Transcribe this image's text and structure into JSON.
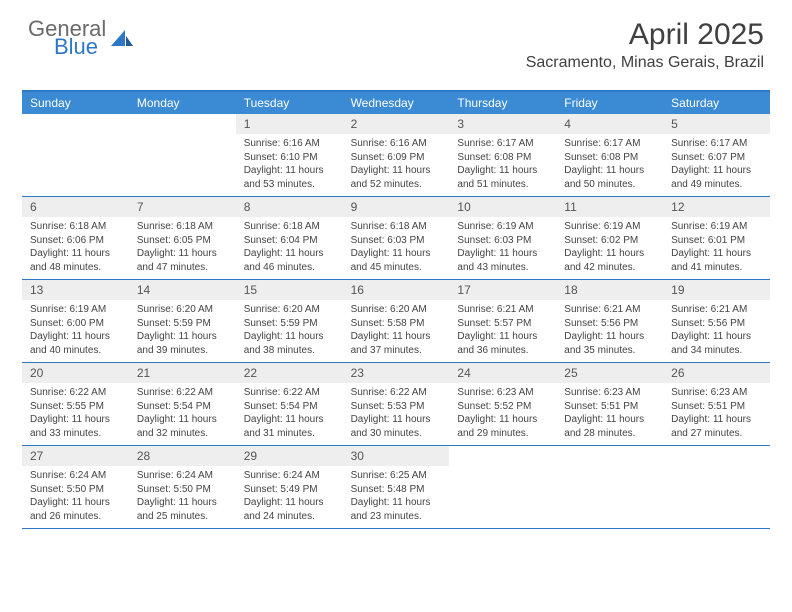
{
  "brand": {
    "line1": "General",
    "line2": "Blue"
  },
  "title": "April 2025",
  "location": "Sacramento, Minas Gerais, Brazil",
  "colors": {
    "header_bg": "#3b8bd4",
    "border": "#2d78c6",
    "daynum_bg": "#eeeeee",
    "text": "#404040"
  },
  "dayHeaders": [
    "Sunday",
    "Monday",
    "Tuesday",
    "Wednesday",
    "Thursday",
    "Friday",
    "Saturday"
  ],
  "weeks": [
    [
      null,
      null,
      {
        "n": "1",
        "sr": "6:16 AM",
        "ss": "6:10 PM",
        "dl": "11 hours and 53 minutes."
      },
      {
        "n": "2",
        "sr": "6:16 AM",
        "ss": "6:09 PM",
        "dl": "11 hours and 52 minutes."
      },
      {
        "n": "3",
        "sr": "6:17 AM",
        "ss": "6:08 PM",
        "dl": "11 hours and 51 minutes."
      },
      {
        "n": "4",
        "sr": "6:17 AM",
        "ss": "6:08 PM",
        "dl": "11 hours and 50 minutes."
      },
      {
        "n": "5",
        "sr": "6:17 AM",
        "ss": "6:07 PM",
        "dl": "11 hours and 49 minutes."
      }
    ],
    [
      {
        "n": "6",
        "sr": "6:18 AM",
        "ss": "6:06 PM",
        "dl": "11 hours and 48 minutes."
      },
      {
        "n": "7",
        "sr": "6:18 AM",
        "ss": "6:05 PM",
        "dl": "11 hours and 47 minutes."
      },
      {
        "n": "8",
        "sr": "6:18 AM",
        "ss": "6:04 PM",
        "dl": "11 hours and 46 minutes."
      },
      {
        "n": "9",
        "sr": "6:18 AM",
        "ss": "6:03 PM",
        "dl": "11 hours and 45 minutes."
      },
      {
        "n": "10",
        "sr": "6:19 AM",
        "ss": "6:03 PM",
        "dl": "11 hours and 43 minutes."
      },
      {
        "n": "11",
        "sr": "6:19 AM",
        "ss": "6:02 PM",
        "dl": "11 hours and 42 minutes."
      },
      {
        "n": "12",
        "sr": "6:19 AM",
        "ss": "6:01 PM",
        "dl": "11 hours and 41 minutes."
      }
    ],
    [
      {
        "n": "13",
        "sr": "6:19 AM",
        "ss": "6:00 PM",
        "dl": "11 hours and 40 minutes."
      },
      {
        "n": "14",
        "sr": "6:20 AM",
        "ss": "5:59 PM",
        "dl": "11 hours and 39 minutes."
      },
      {
        "n": "15",
        "sr": "6:20 AM",
        "ss": "5:59 PM",
        "dl": "11 hours and 38 minutes."
      },
      {
        "n": "16",
        "sr": "6:20 AM",
        "ss": "5:58 PM",
        "dl": "11 hours and 37 minutes."
      },
      {
        "n": "17",
        "sr": "6:21 AM",
        "ss": "5:57 PM",
        "dl": "11 hours and 36 minutes."
      },
      {
        "n": "18",
        "sr": "6:21 AM",
        "ss": "5:56 PM",
        "dl": "11 hours and 35 minutes."
      },
      {
        "n": "19",
        "sr": "6:21 AM",
        "ss": "5:56 PM",
        "dl": "11 hours and 34 minutes."
      }
    ],
    [
      {
        "n": "20",
        "sr": "6:22 AM",
        "ss": "5:55 PM",
        "dl": "11 hours and 33 minutes."
      },
      {
        "n": "21",
        "sr": "6:22 AM",
        "ss": "5:54 PM",
        "dl": "11 hours and 32 minutes."
      },
      {
        "n": "22",
        "sr": "6:22 AM",
        "ss": "5:54 PM",
        "dl": "11 hours and 31 minutes."
      },
      {
        "n": "23",
        "sr": "6:22 AM",
        "ss": "5:53 PM",
        "dl": "11 hours and 30 minutes."
      },
      {
        "n": "24",
        "sr": "6:23 AM",
        "ss": "5:52 PM",
        "dl": "11 hours and 29 minutes."
      },
      {
        "n": "25",
        "sr": "6:23 AM",
        "ss": "5:51 PM",
        "dl": "11 hours and 28 minutes."
      },
      {
        "n": "26",
        "sr": "6:23 AM",
        "ss": "5:51 PM",
        "dl": "11 hours and 27 minutes."
      }
    ],
    [
      {
        "n": "27",
        "sr": "6:24 AM",
        "ss": "5:50 PM",
        "dl": "11 hours and 26 minutes."
      },
      {
        "n": "28",
        "sr": "6:24 AM",
        "ss": "5:50 PM",
        "dl": "11 hours and 25 minutes."
      },
      {
        "n": "29",
        "sr": "6:24 AM",
        "ss": "5:49 PM",
        "dl": "11 hours and 24 minutes."
      },
      {
        "n": "30",
        "sr": "6:25 AM",
        "ss": "5:48 PM",
        "dl": "11 hours and 23 minutes."
      },
      null,
      null,
      null
    ]
  ],
  "labels": {
    "sunrise": "Sunrise: ",
    "sunset": "Sunset: ",
    "daylight": "Daylight: "
  }
}
